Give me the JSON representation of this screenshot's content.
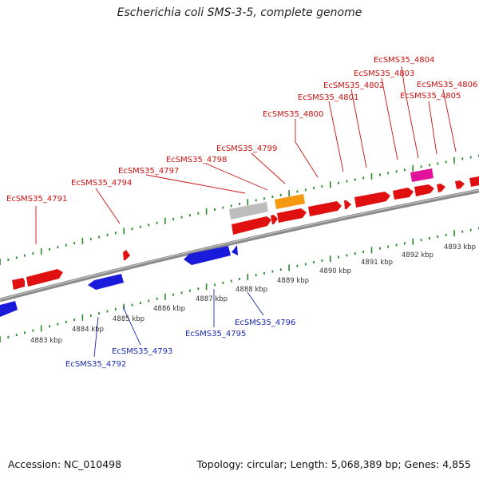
{
  "title": "Escherichia coli SMS-3-5, complete genome",
  "footer": {
    "accession": "Accession: NC_010498",
    "summary": "Topology: circular; Length: 5,068,389 bp; Genes: 4,855"
  },
  "colors": {
    "forward": "#e01010",
    "reverse": "#1a1adb",
    "gray": "#bdbdbd",
    "orange": "#f59a10",
    "magenta": "#e0139a",
    "tick": "#2a8a2a",
    "backbone": "#8a8a8a"
  },
  "scale_labels": [
    "4883 kbp",
    "4884 kbp",
    "4885 kbp",
    "4886 kbp",
    "4887 kbp",
    "4888 kbp",
    "4889 kbp",
    "4890 kbp",
    "4891 kbp",
    "4892 kbp",
    "4893 kbp"
  ],
  "genes_top": [
    "EcSMS35_4791",
    "EcSMS35_4794",
    "EcSMS35_4797",
    "EcSMS35_4798",
    "EcSMS35_4799",
    "EcSMS35_4800",
    "EcSMS35_4801",
    "EcSMS35_4802",
    "EcSMS35_4803",
    "EcSMS35_4804",
    "EcSMS35_4805",
    "EcSMS35_4806"
  ],
  "genes_bottom": [
    "EcSMS35_4792",
    "EcSMS35_4793",
    "EcSMS35_4795",
    "EcSMS35_4796"
  ]
}
